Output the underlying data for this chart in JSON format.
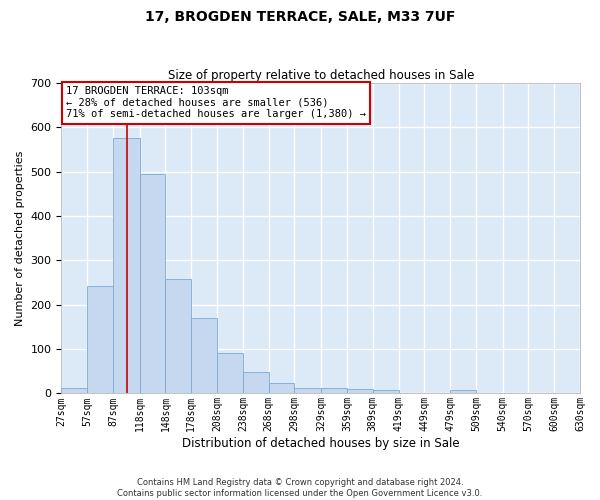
{
  "title": "17, BROGDEN TERRACE, SALE, M33 7UF",
  "subtitle": "Size of property relative to detached houses in Sale",
  "xlabel": "Distribution of detached houses by size in Sale",
  "ylabel": "Number of detached properties",
  "bar_color": "#c5d8f0",
  "bar_edge_color": "#7baad4",
  "background_color": "#dce9f7",
  "grid_color": "#ffffff",
  "annotation_text": "17 BROGDEN TERRACE: 103sqm\n← 28% of detached houses are smaller (536)\n71% of semi-detached houses are larger (1,380) →",
  "annotation_box_color": "#ffffff",
  "annotation_box_edge_color": "#cc0000",
  "property_line_x": 103,
  "property_line_color": "#cc0000",
  "bin_edges": [
    27,
    57,
    87,
    118,
    148,
    178,
    208,
    238,
    268,
    298,
    329,
    359,
    389,
    419,
    449,
    479,
    509,
    540,
    570,
    600,
    630
  ],
  "bin_labels": [
    "27sqm",
    "57sqm",
    "87sqm",
    "118sqm",
    "148sqm",
    "178sqm",
    "208sqm",
    "238sqm",
    "268sqm",
    "298sqm",
    "329sqm",
    "359sqm",
    "389sqm",
    "419sqm",
    "449sqm",
    "479sqm",
    "509sqm",
    "540sqm",
    "570sqm",
    "600sqm",
    "630sqm"
  ],
  "bar_heights": [
    13,
    243,
    577,
    496,
    258,
    170,
    91,
    48,
    24,
    13,
    12,
    10,
    7,
    0,
    0,
    7,
    0,
    0,
    0,
    0
  ],
  "ylim": [
    0,
    700
  ],
  "yticks": [
    0,
    100,
    200,
    300,
    400,
    500,
    600,
    700
  ],
  "footnote": "Contains HM Land Registry data © Crown copyright and database right 2024.\nContains public sector information licensed under the Open Government Licence v3.0."
}
